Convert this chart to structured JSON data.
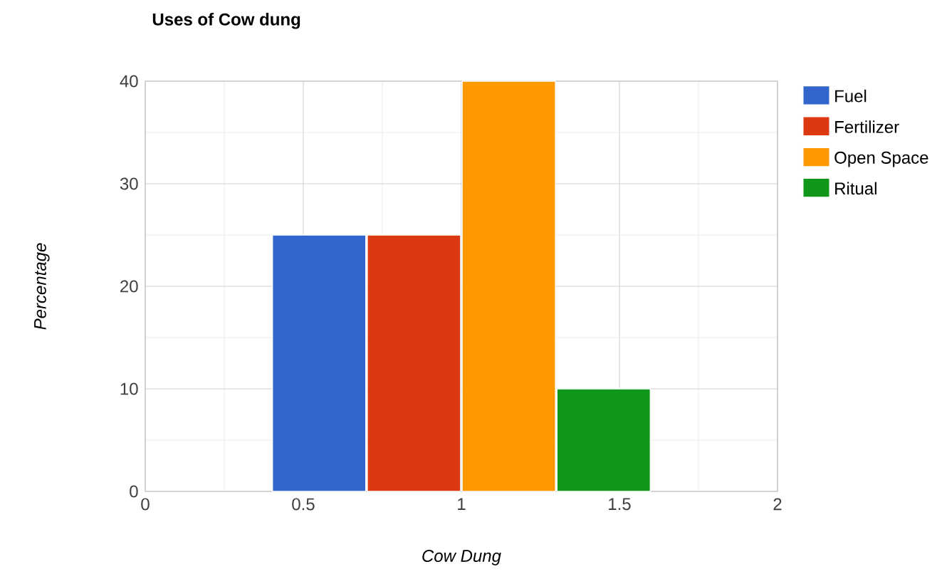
{
  "chart_data": {
    "type": "bar",
    "title": "Uses of Cow dung",
    "xlabel": "Cow Dung",
    "ylabel": "Percentage",
    "series": [
      {
        "name": "Fuel",
        "color": "#3366cc",
        "x": [
          0.55
        ],
        "values": [
          25
        ]
      },
      {
        "name": "Fertilizer",
        "color": "#dc3912",
        "x": [
          0.85
        ],
        "values": [
          25
        ]
      },
      {
        "name": "Open Space",
        "color": "#ff9900",
        "x": [
          1.15
        ],
        "values": [
          40
        ]
      },
      {
        "name": "Ritual",
        "color": "#109618",
        "x": [
          1.45
        ],
        "values": [
          10
        ]
      }
    ],
    "xlim": [
      0,
      2
    ],
    "xticks": [
      0,
      0.5,
      1,
      1.5,
      2
    ],
    "ylim": [
      0,
      40
    ],
    "yticks": [
      0,
      10,
      20,
      30,
      40
    ],
    "grid": true,
    "legend": "right"
  }
}
